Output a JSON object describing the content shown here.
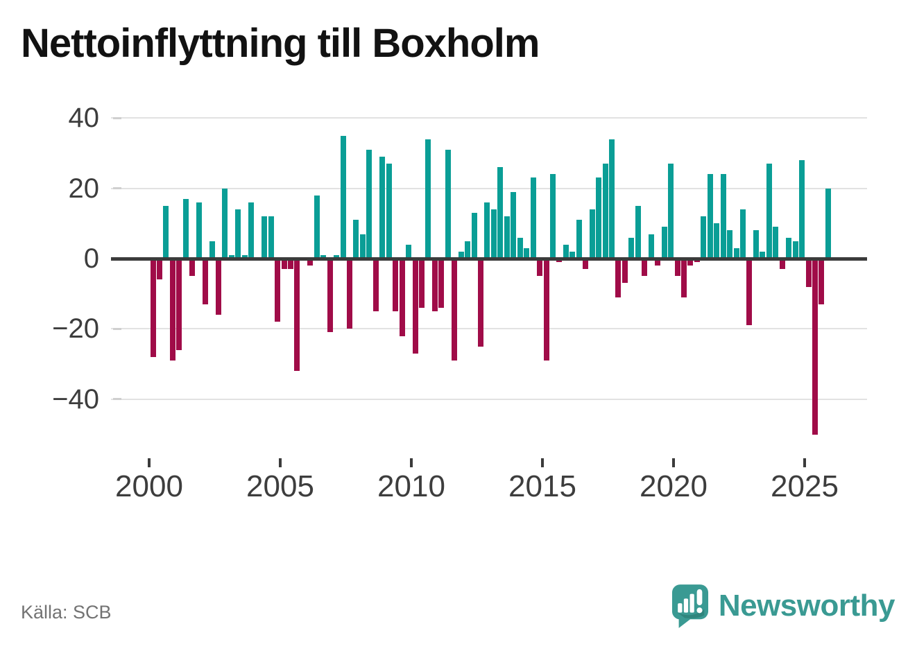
{
  "title": "Nettoinflyttning till Boxholm",
  "source": "Källa: SCB",
  "logo": {
    "text": "Newsworthy"
  },
  "chart_data": {
    "type": "bar",
    "title": "Nettoinflyttning till Boxholm",
    "frequency": "quarterly",
    "start": "2000-Q1",
    "end": "2025-Q4",
    "values": [
      -28,
      -6,
      15,
      -29,
      -26,
      17,
      -5,
      16,
      -13,
      5,
      -16,
      20,
      1,
      14,
      1,
      16,
      0,
      12,
      12,
      -18,
      -3,
      -3,
      -32,
      0,
      -2,
      18,
      1,
      -21,
      1,
      35,
      -20,
      11,
      7,
      31,
      -15,
      29,
      27,
      -15,
      -22,
      4,
      -27,
      -14,
      34,
      -15,
      -14,
      31,
      -29,
      2,
      5,
      13,
      -25,
      16,
      14,
      26,
      12,
      19,
      6,
      3,
      23,
      -5,
      -29,
      24,
      -1,
      4,
      2,
      11,
      -3,
      14,
      23,
      27,
      34,
      -11,
      -7,
      6,
      15,
      -5,
      7,
      -2,
      9,
      27,
      -5,
      -11,
      -2,
      -1,
      12,
      24,
      10,
      24,
      8,
      3,
      14,
      -19,
      8,
      2,
      27,
      9,
      -3,
      6,
      5,
      28,
      -8,
      -50,
      -13,
      20
    ],
    "xticks": [
      2000,
      2005,
      2010,
      2015,
      2020,
      2025
    ],
    "yticks": [
      40,
      20,
      0,
      -20,
      -40
    ],
    "ylim": [
      -52,
      44
    ],
    "grid": "horizontal",
    "legend": "none",
    "colors": {
      "positive": "#0a9e96",
      "negative": "#a00c48",
      "axis": "#3b3b3b",
      "grid": "#e2e2e2",
      "tick_label": "#3d3d3d",
      "logo_teal": "#3a9a93"
    }
  }
}
